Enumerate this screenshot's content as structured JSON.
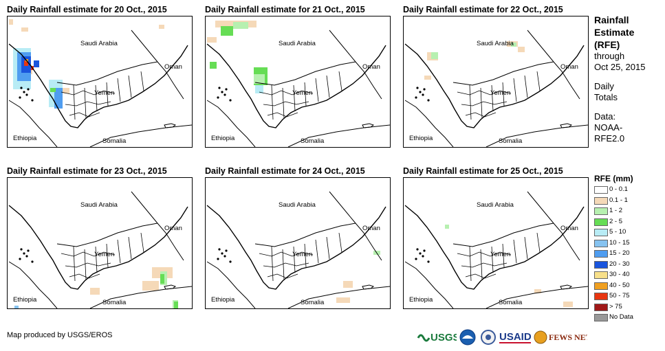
{
  "panels": [
    {
      "title": "Daily Rainfall estimate for 20 Oct., 2015"
    },
    {
      "title": "Daily Rainfall estimate for 21 Oct., 2015"
    },
    {
      "title": "Daily Rainfall estimate for 22 Oct., 2015"
    },
    {
      "title": "Daily Rainfall estimate for 23 Oct., 2015"
    },
    {
      "title": "Daily Rainfall estimate for 24 Oct., 2015"
    },
    {
      "title": "Daily Rainfall estimate for 25 Oct., 2015"
    }
  ],
  "map_labels": {
    "saudi": "Saudi Arabia",
    "oman": "Oman",
    "yemen": "Yemen",
    "ethiopia": "Ethiopia",
    "somalia": "Somalia"
  },
  "sidebar": {
    "title_line1": "Rainfall",
    "title_line2": "Estimate",
    "title_line3": "(RFE)",
    "sub_line1": "through",
    "sub_line2": "Oct 25, 2015",
    "daily_line1": "Daily",
    "daily_line2": "Totals",
    "data_line1": "Data:",
    "data_line2": "NOAA-",
    "data_line3": "RFE2.0"
  },
  "legend": {
    "title": "RFE (mm)",
    "items": [
      {
        "label": "0 - 0.1",
        "color": "#ffffff"
      },
      {
        "label": "0.1 - 1",
        "color": "#f5d9b8"
      },
      {
        "label": "1 - 2",
        "color": "#b7f0b0"
      },
      {
        "label": "2 - 5",
        "color": "#66dd55"
      },
      {
        "label": "5 - 10",
        "color": "#b8ecf5"
      },
      {
        "label": "10 - 15",
        "color": "#86c3f0"
      },
      {
        "label": "15 - 20",
        "color": "#4f9df0"
      },
      {
        "label": "20 - 30",
        "color": "#1a55dd"
      },
      {
        "label": "30 - 40",
        "color": "#f8e08a"
      },
      {
        "label": "40 - 50",
        "color": "#f0a020"
      },
      {
        "label": "50 - 75",
        "color": "#e83510"
      },
      {
        "label": "> 75",
        "color": "#a01818"
      },
      {
        "label": "No Data",
        "color": "#999999"
      }
    ]
  },
  "credit": "Map produced by USGS/EROS",
  "logos": [
    {
      "text": "USGS",
      "icon": "usgs-logo"
    },
    {
      "text": "",
      "icon": "noaa-logo"
    },
    {
      "text": "",
      "icon": "dhs-seal-logo"
    },
    {
      "text": "USAID",
      "icon": "usaid-logo"
    },
    {
      "text": "FEWS NET",
      "icon": "fews-net-logo"
    }
  ]
}
